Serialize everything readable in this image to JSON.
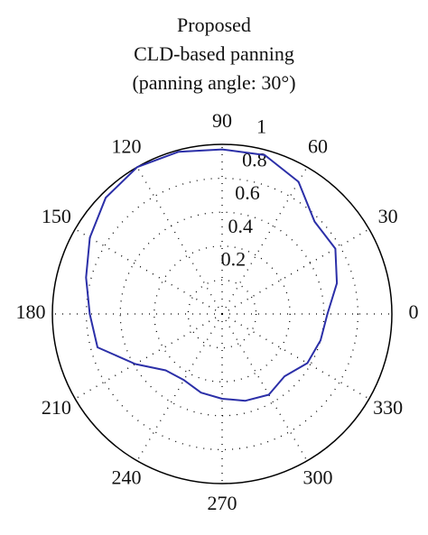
{
  "chart_data": {
    "type": "polar",
    "title": [
      "Proposed",
      "CLD-based panning",
      "(panning angle: 30°)"
    ],
    "rlim": [
      0,
      1
    ],
    "rticks": [
      0.2,
      0.4,
      0.6,
      0.8,
      1
    ],
    "thetaticks": [
      0,
      30,
      60,
      90,
      120,
      150,
      180,
      210,
      240,
      270,
      300,
      330
    ],
    "grid": true,
    "series": [
      {
        "color": "#2b2fa8",
        "theta": [
          0,
          15,
          30,
          45,
          60,
          75,
          90,
          105,
          120,
          135,
          150,
          165,
          180,
          195,
          210,
          225,
          240,
          255,
          270,
          285,
          300,
          315,
          330,
          345
        ],
        "r": [
          0.62,
          0.7,
          0.77,
          0.77,
          0.9,
          0.97,
          0.97,
          0.99,
          1.0,
          0.97,
          0.9,
          0.83,
          0.78,
          0.76,
          0.59,
          0.47,
          0.45,
          0.48,
          0.5,
          0.53,
          0.55,
          0.52,
          0.58,
          0.6
        ]
      }
    ]
  }
}
